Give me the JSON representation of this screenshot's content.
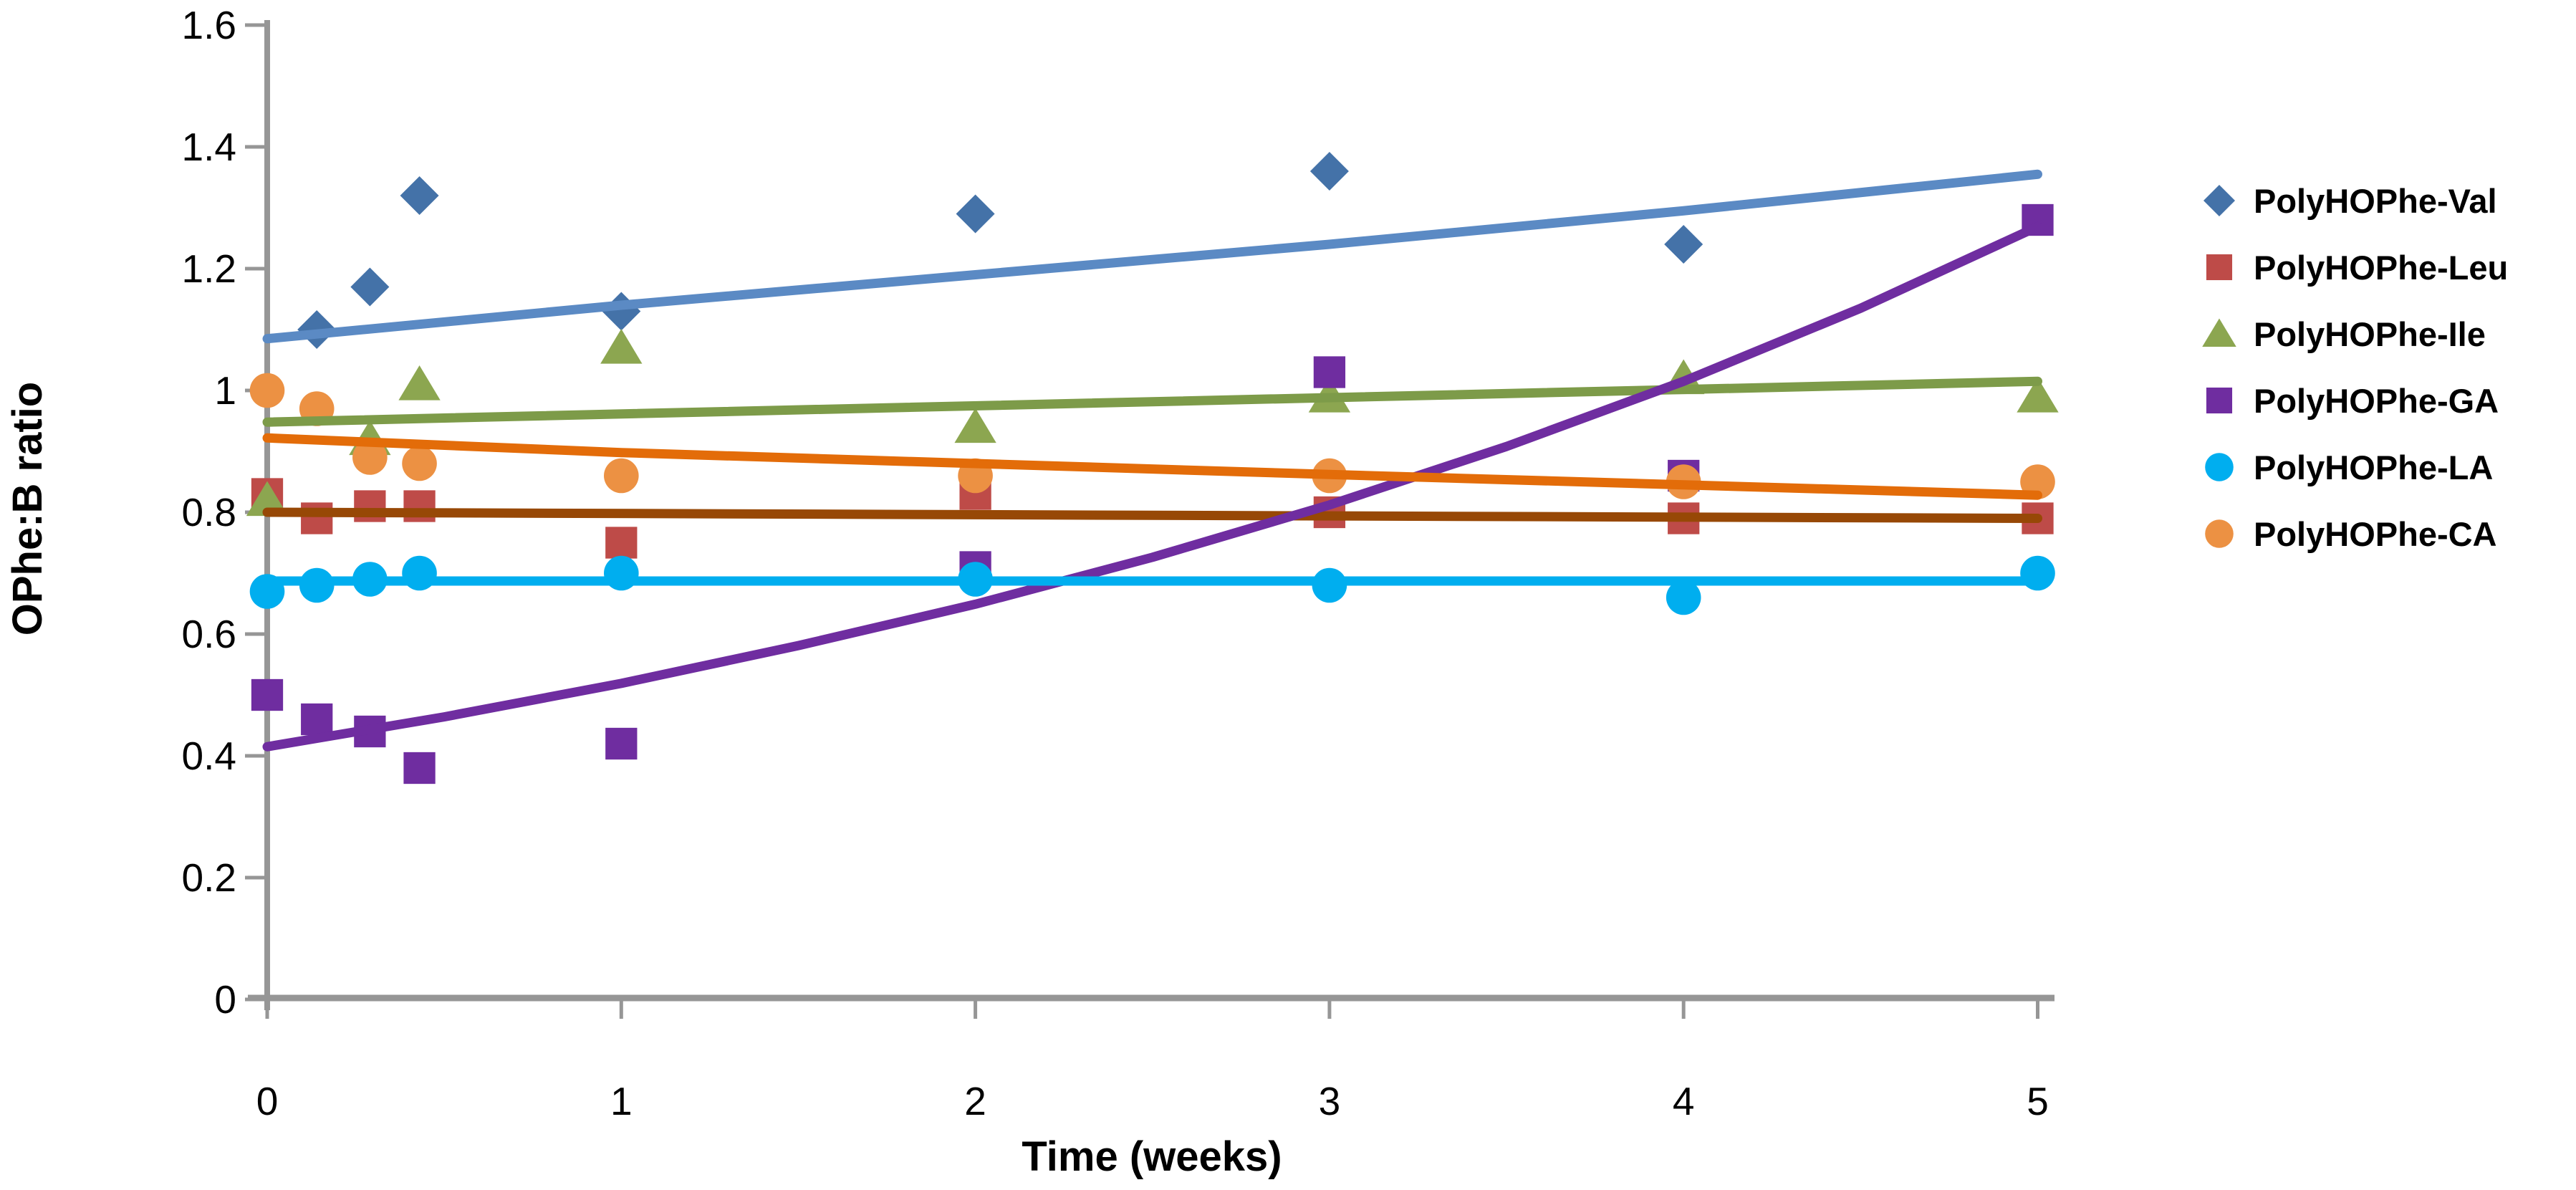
{
  "chart_data": {
    "type": "scatter",
    "title": "",
    "xlabel": "Time (weeks)",
    "ylabel": "OPhe:B ratio",
    "xlim": [
      0,
      5
    ],
    "ylim": [
      0,
      1.6
    ],
    "grid": false,
    "legend_position": "right",
    "axis_color": "#969696",
    "xticks": {
      "values": [
        0,
        1,
        2,
        3,
        4,
        5
      ],
      "labels": [
        "0",
        "1",
        "2",
        "3",
        "4",
        "5"
      ]
    },
    "yticks": {
      "values": [
        0,
        0.2,
        0.4,
        0.6,
        0.8,
        1.0,
        1.2,
        1.4,
        1.6
      ],
      "labels": [
        "0",
        "0.2",
        "0.4",
        "0.6",
        "0.8",
        "1",
        "1.2",
        "1.4",
        "1.6"
      ]
    },
    "series": [
      {
        "name": "PolyHOPhe-Val",
        "marker": "diamond",
        "color": "#4472A8",
        "trend_color": "#5B8AC4",
        "points": [
          [
            0.14,
            1.1
          ],
          [
            0.29,
            1.17
          ],
          [
            0.43,
            1.32
          ],
          [
            1,
            1.13
          ],
          [
            2,
            1.29
          ],
          [
            3,
            1.36
          ],
          [
            4,
            1.24
          ]
        ],
        "trend_points": [
          [
            0,
            1.085
          ],
          [
            1,
            1.14
          ],
          [
            2,
            1.19
          ],
          [
            3,
            1.24
          ],
          [
            4,
            1.295
          ],
          [
            5,
            1.355
          ]
        ]
      },
      {
        "name": "PolyHOPhe-Leu",
        "marker": "square",
        "color": "#BE4B48",
        "trend_color": "#974806",
        "points": [
          [
            0,
            0.83
          ],
          [
            0.14,
            0.79
          ],
          [
            0.29,
            0.81
          ],
          [
            0.43,
            0.81
          ],
          [
            1,
            0.75
          ],
          [
            2,
            0.83
          ],
          [
            3,
            0.8
          ],
          [
            4,
            0.79
          ],
          [
            5,
            0.79
          ]
        ],
        "trend_points": [
          [
            0,
            0.8
          ],
          [
            5,
            0.79
          ]
        ]
      },
      {
        "name": "PolyHOPhe-Ile",
        "marker": "triangle",
        "color": "#8CA650",
        "trend_color": "#7D9B49",
        "points": [
          [
            0,
            0.82
          ],
          [
            0.29,
            0.92
          ],
          [
            0.43,
            1.01
          ],
          [
            1,
            1.07
          ],
          [
            2,
            0.94
          ],
          [
            3,
            0.99
          ],
          [
            4,
            1.02
          ],
          [
            5,
            0.99
          ]
        ],
        "trend_points": [
          [
            0,
            0.948
          ],
          [
            5,
            1.015
          ]
        ]
      },
      {
        "name": "PolyHOPhe-GA",
        "marker": "square",
        "color": "#6F2DA0",
        "trend_color": "#6F2DA0",
        "points": [
          [
            0,
            0.5
          ],
          [
            0.14,
            0.46
          ],
          [
            0.29,
            0.44
          ],
          [
            0.43,
            0.38
          ],
          [
            1,
            0.42
          ],
          [
            2,
            0.71
          ],
          [
            3,
            1.03
          ],
          [
            4,
            0.86
          ],
          [
            5,
            1.28
          ]
        ],
        "trend_points": [
          [
            0,
            0.415
          ],
          [
            0.5,
            0.464
          ],
          [
            1,
            0.519
          ],
          [
            1.5,
            0.581
          ],
          [
            2,
            0.649
          ],
          [
            2.5,
            0.726
          ],
          [
            3,
            0.812
          ],
          [
            3.5,
            0.908
          ],
          [
            4,
            1.015
          ],
          [
            4.5,
            1.135
          ],
          [
            5,
            1.269
          ]
        ]
      },
      {
        "name": "PolyHOPhe-LA",
        "marker": "circle",
        "color": "#00AEEF",
        "trend_color": "#00AEEF",
        "points": [
          [
            0,
            0.67
          ],
          [
            0.14,
            0.68
          ],
          [
            0.29,
            0.69
          ],
          [
            0.43,
            0.7
          ],
          [
            1,
            0.7
          ],
          [
            2,
            0.69
          ],
          [
            3,
            0.68
          ],
          [
            4,
            0.66
          ],
          [
            5,
            0.7
          ]
        ],
        "trend_points": [
          [
            0,
            0.687
          ],
          [
            5,
            0.687
          ]
        ]
      },
      {
        "name": "PolyHOPhe-CA",
        "marker": "circle",
        "color": "#EC9143",
        "trend_color": "#E36C09",
        "points": [
          [
            0,
            1.0
          ],
          [
            0.14,
            0.97
          ],
          [
            0.29,
            0.89
          ],
          [
            0.43,
            0.88
          ],
          [
            1,
            0.86
          ],
          [
            2,
            0.86
          ],
          [
            3,
            0.86
          ],
          [
            4,
            0.85
          ],
          [
            5,
            0.85
          ]
        ],
        "trend_points": [
          [
            0,
            0.922
          ],
          [
            1,
            0.898
          ],
          [
            2,
            0.88
          ],
          [
            3,
            0.862
          ],
          [
            4,
            0.845
          ],
          [
            5,
            0.828
          ]
        ]
      }
    ]
  }
}
